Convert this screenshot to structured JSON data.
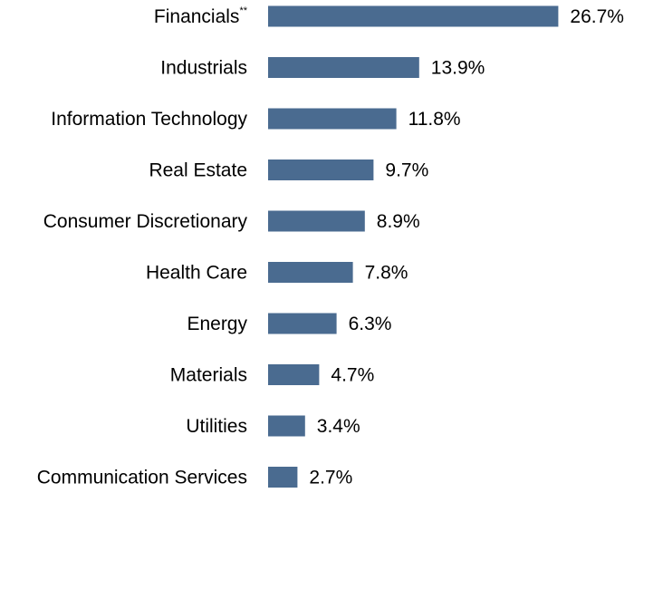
{
  "chart_data": {
    "type": "bar",
    "orientation": "horizontal",
    "categories": [
      "Financials",
      "Industrials",
      "Information Technology",
      "Real Estate",
      "Consumer Discretionary",
      "Health Care",
      "Energy",
      "Materials",
      "Utilities",
      "Communication Services"
    ],
    "category_superscripts": [
      "**",
      "",
      "",
      "",
      "",
      "",
      "",
      "",
      "",
      ""
    ],
    "values": [
      26.7,
      13.9,
      11.8,
      9.7,
      8.9,
      7.8,
      6.3,
      4.7,
      3.4,
      2.7
    ],
    "value_labels": [
      "26.7%",
      "13.9%",
      "11.8%",
      "9.7%",
      "8.9%",
      "7.8%",
      "6.3%",
      "4.7%",
      "3.4%",
      "2.7%"
    ],
    "bar_color": "#4a6b90",
    "grid": false,
    "legend": "none"
  }
}
